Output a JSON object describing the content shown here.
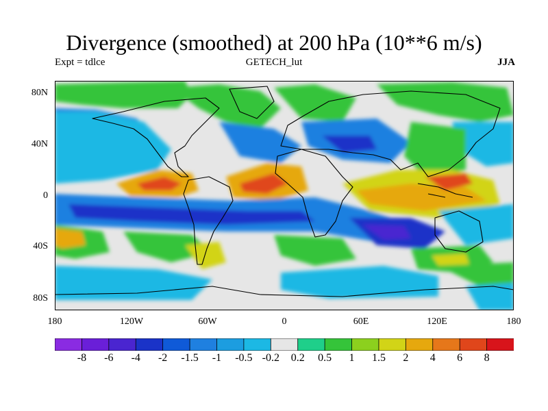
{
  "title": "Divergence (smoothed) at 200 hPa (10**6 m/s)",
  "subtitle_left": "Expt = tdlce",
  "subtitle_center": "GETECH_lut",
  "subtitle_right": "JJA",
  "y_ticks": [
    "80N",
    "40N",
    "0",
    "40S",
    "80S"
  ],
  "x_ticks": [
    "180",
    "120W",
    "60W",
    "0",
    "60E",
    "120E",
    "180"
  ],
  "colorbar": {
    "labels": [
      "-8",
      "-6",
      "-4",
      "-2",
      "-1.5",
      "-1",
      "-0.5",
      "-0.2",
      "0.2",
      "0.5",
      "1",
      "1.5",
      "2",
      "4",
      "6",
      "8"
    ],
    "colors": [
      "#8a2be2",
      "#6a1fd8",
      "#4a25d0",
      "#1a33c8",
      "#0f5ad8",
      "#1f80e0",
      "#1c9de0",
      "#1cb8e4",
      "#e6e6e6",
      "#1fcf8a",
      "#35c43a",
      "#8cd01e",
      "#d2d417",
      "#e6a80e",
      "#e6771a",
      "#e0461b",
      "#d8141b"
    ]
  },
  "map_colors": {
    "neutral": "#e6e6e6",
    "blue_light": "#1cb8e4",
    "blue_mid": "#1f80e0",
    "blue_dark": "#1a33c8",
    "violet": "#4a25d0",
    "green_light": "#1fcf8a",
    "green": "#35c43a",
    "yellow_green": "#8cd01e",
    "yellow": "#d2d417",
    "orange": "#e6a80e",
    "orange_dark": "#e6771a",
    "red": "#e0461b",
    "coast": "#000000"
  }
}
